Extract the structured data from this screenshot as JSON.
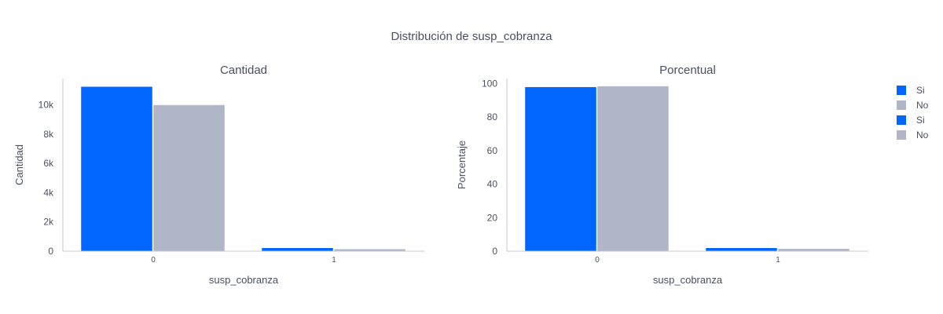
{
  "title": "Distribución de susp_cobranza",
  "colors": {
    "si": "#0066ff",
    "no": "#b0b5c8",
    "axis": "#c5c9dc"
  },
  "legend": [
    {
      "label": "Si",
      "color": "#0066ff"
    },
    {
      "label": "No",
      "color": "#b0b5c8"
    },
    {
      "label": "Si",
      "color": "#0066ff"
    },
    {
      "label": "No",
      "color": "#b0b5c8"
    }
  ],
  "chart_data": [
    {
      "type": "bar",
      "title": "Cantidad",
      "xlabel": "susp_cobranza",
      "ylabel": "Cantidad",
      "categories": [
        "0",
        "1"
      ],
      "ylim": [
        0,
        11800
      ],
      "yticks": [
        0,
        2000,
        4000,
        6000,
        8000,
        10000
      ],
      "ytick_labels": [
        "0",
        "2k",
        "4k",
        "6k",
        "8k",
        "10k"
      ],
      "series": [
        {
          "name": "Si",
          "values": [
            11250,
            230
          ]
        },
        {
          "name": "No",
          "values": [
            10000,
            150
          ]
        }
      ]
    },
    {
      "type": "bar",
      "title": "Porcentual",
      "xlabel": "susp_cobranza",
      "ylabel": "Porcentaje",
      "categories": [
        "0",
        "1"
      ],
      "ylim": [
        0,
        103
      ],
      "yticks": [
        0,
        20,
        40,
        60,
        80,
        100
      ],
      "ytick_labels": [
        "0",
        "20",
        "40",
        "60",
        "80",
        "100"
      ],
      "series": [
        {
          "name": "Si",
          "values": [
            98,
            2
          ]
        },
        {
          "name": "No",
          "values": [
            98.5,
            1.5
          ]
        }
      ]
    }
  ]
}
